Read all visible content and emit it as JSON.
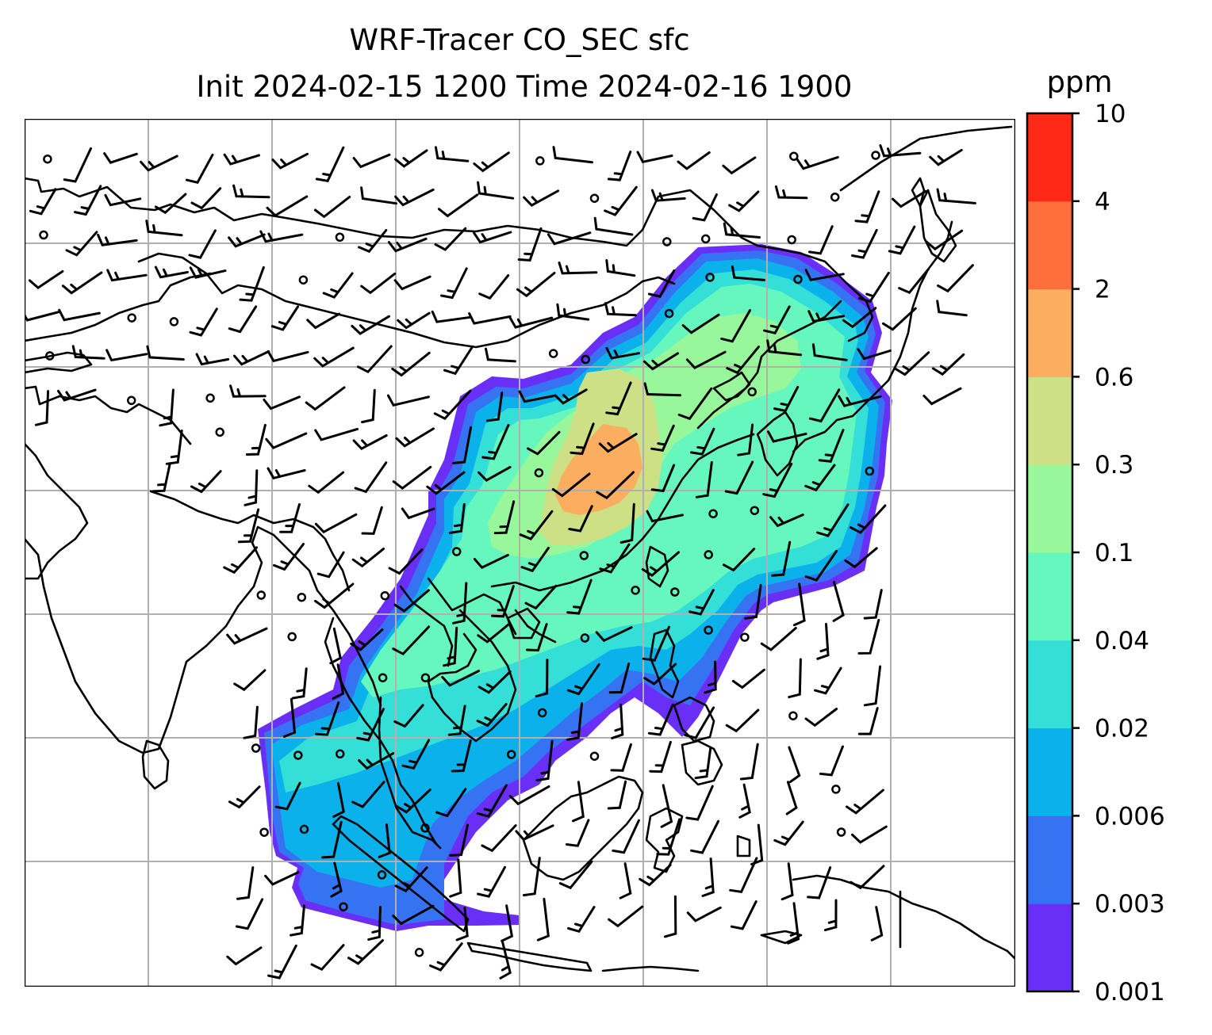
{
  "title": {
    "line1": "WRF-Tracer CO_SEC sfc",
    "line2": "Init 2024-02-15 1200 Time 2024-02-16 1900"
  },
  "colorbar": {
    "unit": "ppm",
    "levels": [
      "0.001",
      "0.003",
      "0.006",
      "0.02",
      "0.04",
      "0.1",
      "0.3",
      "0.6",
      "2",
      "4",
      "10"
    ],
    "colors": [
      "#6a2ff7",
      "#3673f2",
      "#0bb1ea",
      "#33dfd6",
      "#66f7bf",
      "#99f79b",
      "#cde085",
      "#fcae60",
      "#ff6f3b",
      "#ff2916"
    ]
  },
  "map": {
    "field": "CO_SEC surface concentration",
    "features": [
      "coastlines",
      "graticule",
      "wind barbs",
      "calm-wind circles"
    ]
  }
}
